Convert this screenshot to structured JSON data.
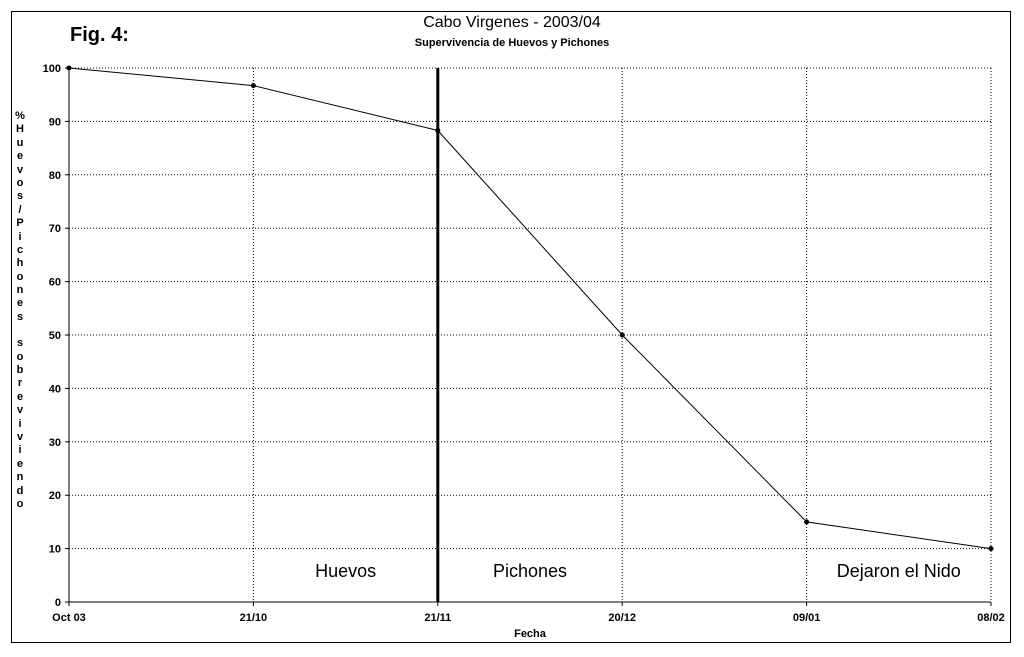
{
  "figure_label": "Fig. 4:",
  "chart_data": {
    "type": "line",
    "title": "Cabo Virgenes - 2003/04",
    "subtitle": "Supervivencia de Huevos y Pichones",
    "xlabel": "Fecha",
    "ylabel": "% Huevos / Pichones sobreviviendo",
    "categories": [
      "Oct 03",
      "21/10",
      "21/11",
      "20/12",
      "09/01",
      "08/02"
    ],
    "series": [
      {
        "values": [
          100,
          96.7,
          88.3,
          50,
          15,
          10
        ]
      }
    ],
    "ylim": [
      0,
      100
    ],
    "yticks": [
      0,
      10,
      20,
      30,
      40,
      50,
      60,
      70,
      80,
      90,
      100
    ],
    "grid": true,
    "grid_style": "dotted",
    "line_color": "#000000",
    "divider_at_category": "21/11",
    "annotations": [
      {
        "text": "Huevos",
        "x_between": [
          1,
          2
        ]
      },
      {
        "text": "Pichones",
        "x_between": [
          2,
          3
        ]
      },
      {
        "text": "Dejaron el Nido",
        "x_between": [
          4,
          5
        ]
      }
    ]
  }
}
